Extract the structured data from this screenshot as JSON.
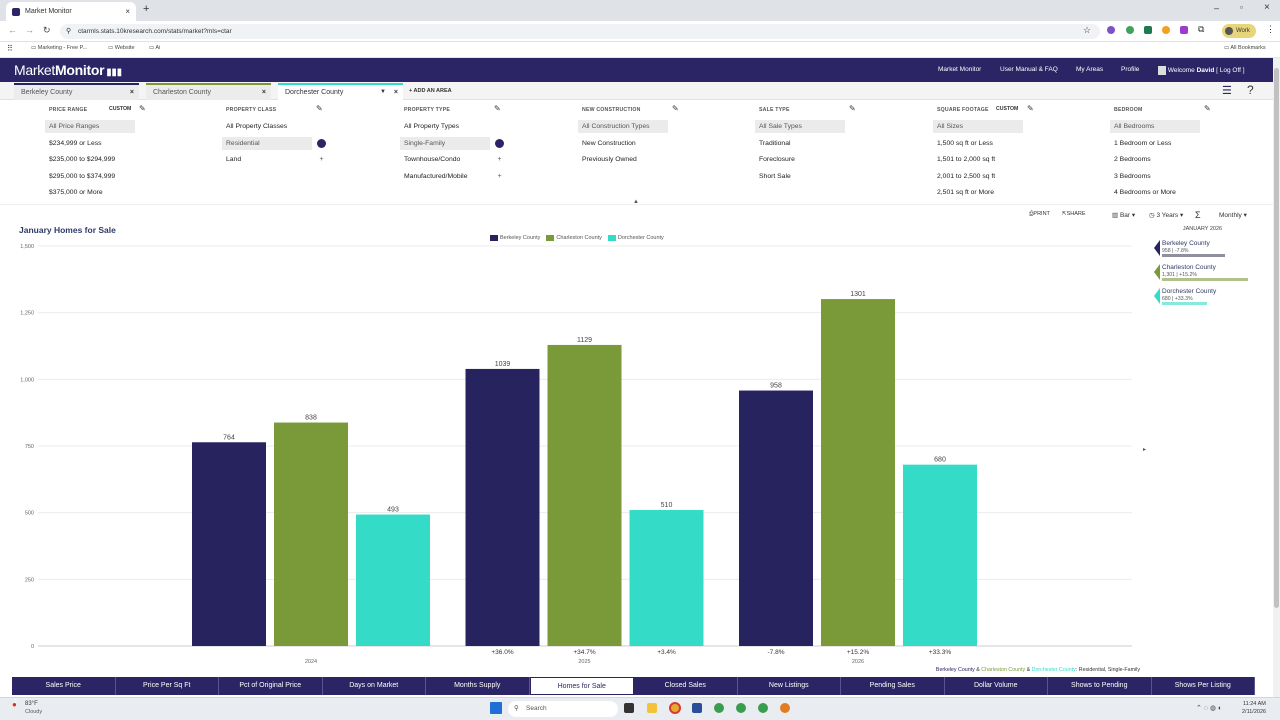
{
  "browser": {
    "tab_title": "Market Monitor",
    "new_tab": "+",
    "url": "ctarmls.stats.10kresearch.com/stats/market?mls=ctar",
    "bookmarks": [
      "Marketing - Free P...",
      "Website",
      "Ai"
    ],
    "all_bookmarks": "All Bookmarks",
    "profile_label": "Work"
  },
  "header": {
    "logo_a": "Market",
    "logo_b": "Monitor",
    "nav": [
      "Market Monitor",
      "User Manual & FAQ",
      "My Areas",
      "Profile"
    ],
    "welcome": "Welcome",
    "user": "David",
    "logoff": "[ Log Off ]"
  },
  "areas": [
    {
      "label": "Berkeley County",
      "color": "#27235e"
    },
    {
      "label": "Charleston County",
      "color": "#7a9a3a"
    },
    {
      "label": "Dorchester County",
      "color": "#34dcc7"
    }
  ],
  "add_area": "+ ADD AN AREA",
  "filters": [
    {
      "head": "PRICE RANGE",
      "custom": "CUSTOM",
      "options": [
        "All Price Ranges",
        "$234,999 or Less",
        "$235,000 to $294,999",
        "$295,000 to $374,999",
        "$375,000 or More"
      ],
      "selected": 0,
      "marks": [
        "",
        "",
        "",
        "",
        ""
      ]
    },
    {
      "head": "PROPERTY CLASS",
      "custom": "",
      "options": [
        "All Property Classes",
        "Residential",
        "Land"
      ],
      "selected": 1,
      "marks": [
        "",
        "dot",
        "+"
      ]
    },
    {
      "head": "PROPERTY TYPE",
      "custom": "",
      "options": [
        "All Property Types",
        "Single-Family",
        "Townhouse/Condo",
        "Manufactured/Mobile"
      ],
      "selected": 1,
      "marks": [
        "",
        "dot",
        "+",
        "+"
      ]
    },
    {
      "head": "NEW CONSTRUCTION",
      "custom": "",
      "options": [
        "All Construction Types",
        "New Construction",
        "Previously Owned"
      ],
      "selected": 0,
      "marks": [
        "",
        "",
        ""
      ]
    },
    {
      "head": "SALE TYPE",
      "custom": "",
      "options": [
        "All Sale Types",
        "Traditional",
        "Foreclosure",
        "Short Sale"
      ],
      "selected": 0,
      "marks": [
        "",
        "",
        "",
        ""
      ]
    },
    {
      "head": "SQUARE FOOTAGE",
      "custom": "CUSTOM",
      "options": [
        "All Sizes",
        "1,500 sq ft or Less",
        "1,501 to 2,000 sq ft",
        "2,001 to 2,500 sq ft",
        "2,501 sq ft or More"
      ],
      "selected": 0,
      "marks": [
        "",
        "",
        "",
        "",
        ""
      ]
    },
    {
      "head": "BEDROOM",
      "custom": "",
      "options": [
        "All Bedrooms",
        "1 Bedroom or Less",
        "2 Bedrooms",
        "3 Bedrooms",
        "4 Bedrooms or More"
      ],
      "selected": 0,
      "marks": [
        "",
        "",
        "",
        "",
        ""
      ]
    }
  ],
  "tools": {
    "print": "PRINT",
    "share": "SHARE",
    "chart_type": "Bar",
    "range": "3 Years",
    "period": "Monthly"
  },
  "chart_data": {
    "type": "bar",
    "title": "January Homes for Sale",
    "categories": [
      "2024",
      "2025",
      "2026"
    ],
    "series": [
      {
        "name": "Berkeley County",
        "values": [
          764,
          1039,
          958
        ],
        "changes": [
          "",
          "+36.0%",
          "-7.8%"
        ],
        "color": "#27235e"
      },
      {
        "name": "Charleston County",
        "values": [
          838,
          1129,
          1301
        ],
        "changes": [
          "",
          "+34.7%",
          "+15.2%"
        ],
        "color": "#7a9a3a"
      },
      {
        "name": "Dorchester County",
        "values": [
          493,
          510,
          680
        ],
        "changes": [
          "",
          "+3.4%",
          "+33.3%"
        ],
        "color": "#34dcc7"
      }
    ],
    "yticks": [
      "0",
      "250",
      "500",
      "750",
      "1,000",
      "1,250",
      "1,500"
    ],
    "ylim": [
      0,
      1500
    ],
    "grid": true,
    "legend": "top-center",
    "footnote_areas": [
      "Berkeley County",
      "Charleston County",
      "Dorchester County"
    ],
    "footnote_sep": "&",
    "footnote_tail": "Residential, Single-Family"
  },
  "side_panel": {
    "title": "JANUARY 2026",
    "rows": [
      {
        "name": "Berkeley County",
        "value": "958 | -7.8%",
        "color": "#27235e",
        "bar": 0.737
      },
      {
        "name": "Charleston County",
        "value": "1,301 | +15.2%",
        "color": "#7a9a3a",
        "bar": 1.0
      },
      {
        "name": "Dorchester County",
        "value": "680 | +33.3%",
        "color": "#34dcc7",
        "bar": 0.523
      }
    ]
  },
  "bottom_tabs": [
    "Sales Price",
    "Price Per Sq Ft",
    "Pct of Original Price",
    "Days on Market",
    "Months Supply",
    "Homes for Sale",
    "Closed Sales",
    "New Listings",
    "Pending Sales",
    "Dollar Volume",
    "Shows to Pending",
    "Shows Per Listing"
  ],
  "active_bottom_tab": 5,
  "taskbar": {
    "temp": "83°F",
    "weather": "Cloudy",
    "search": "Search",
    "time": "11:24 AM",
    "date": "2/11/2026",
    "badge": "2"
  }
}
